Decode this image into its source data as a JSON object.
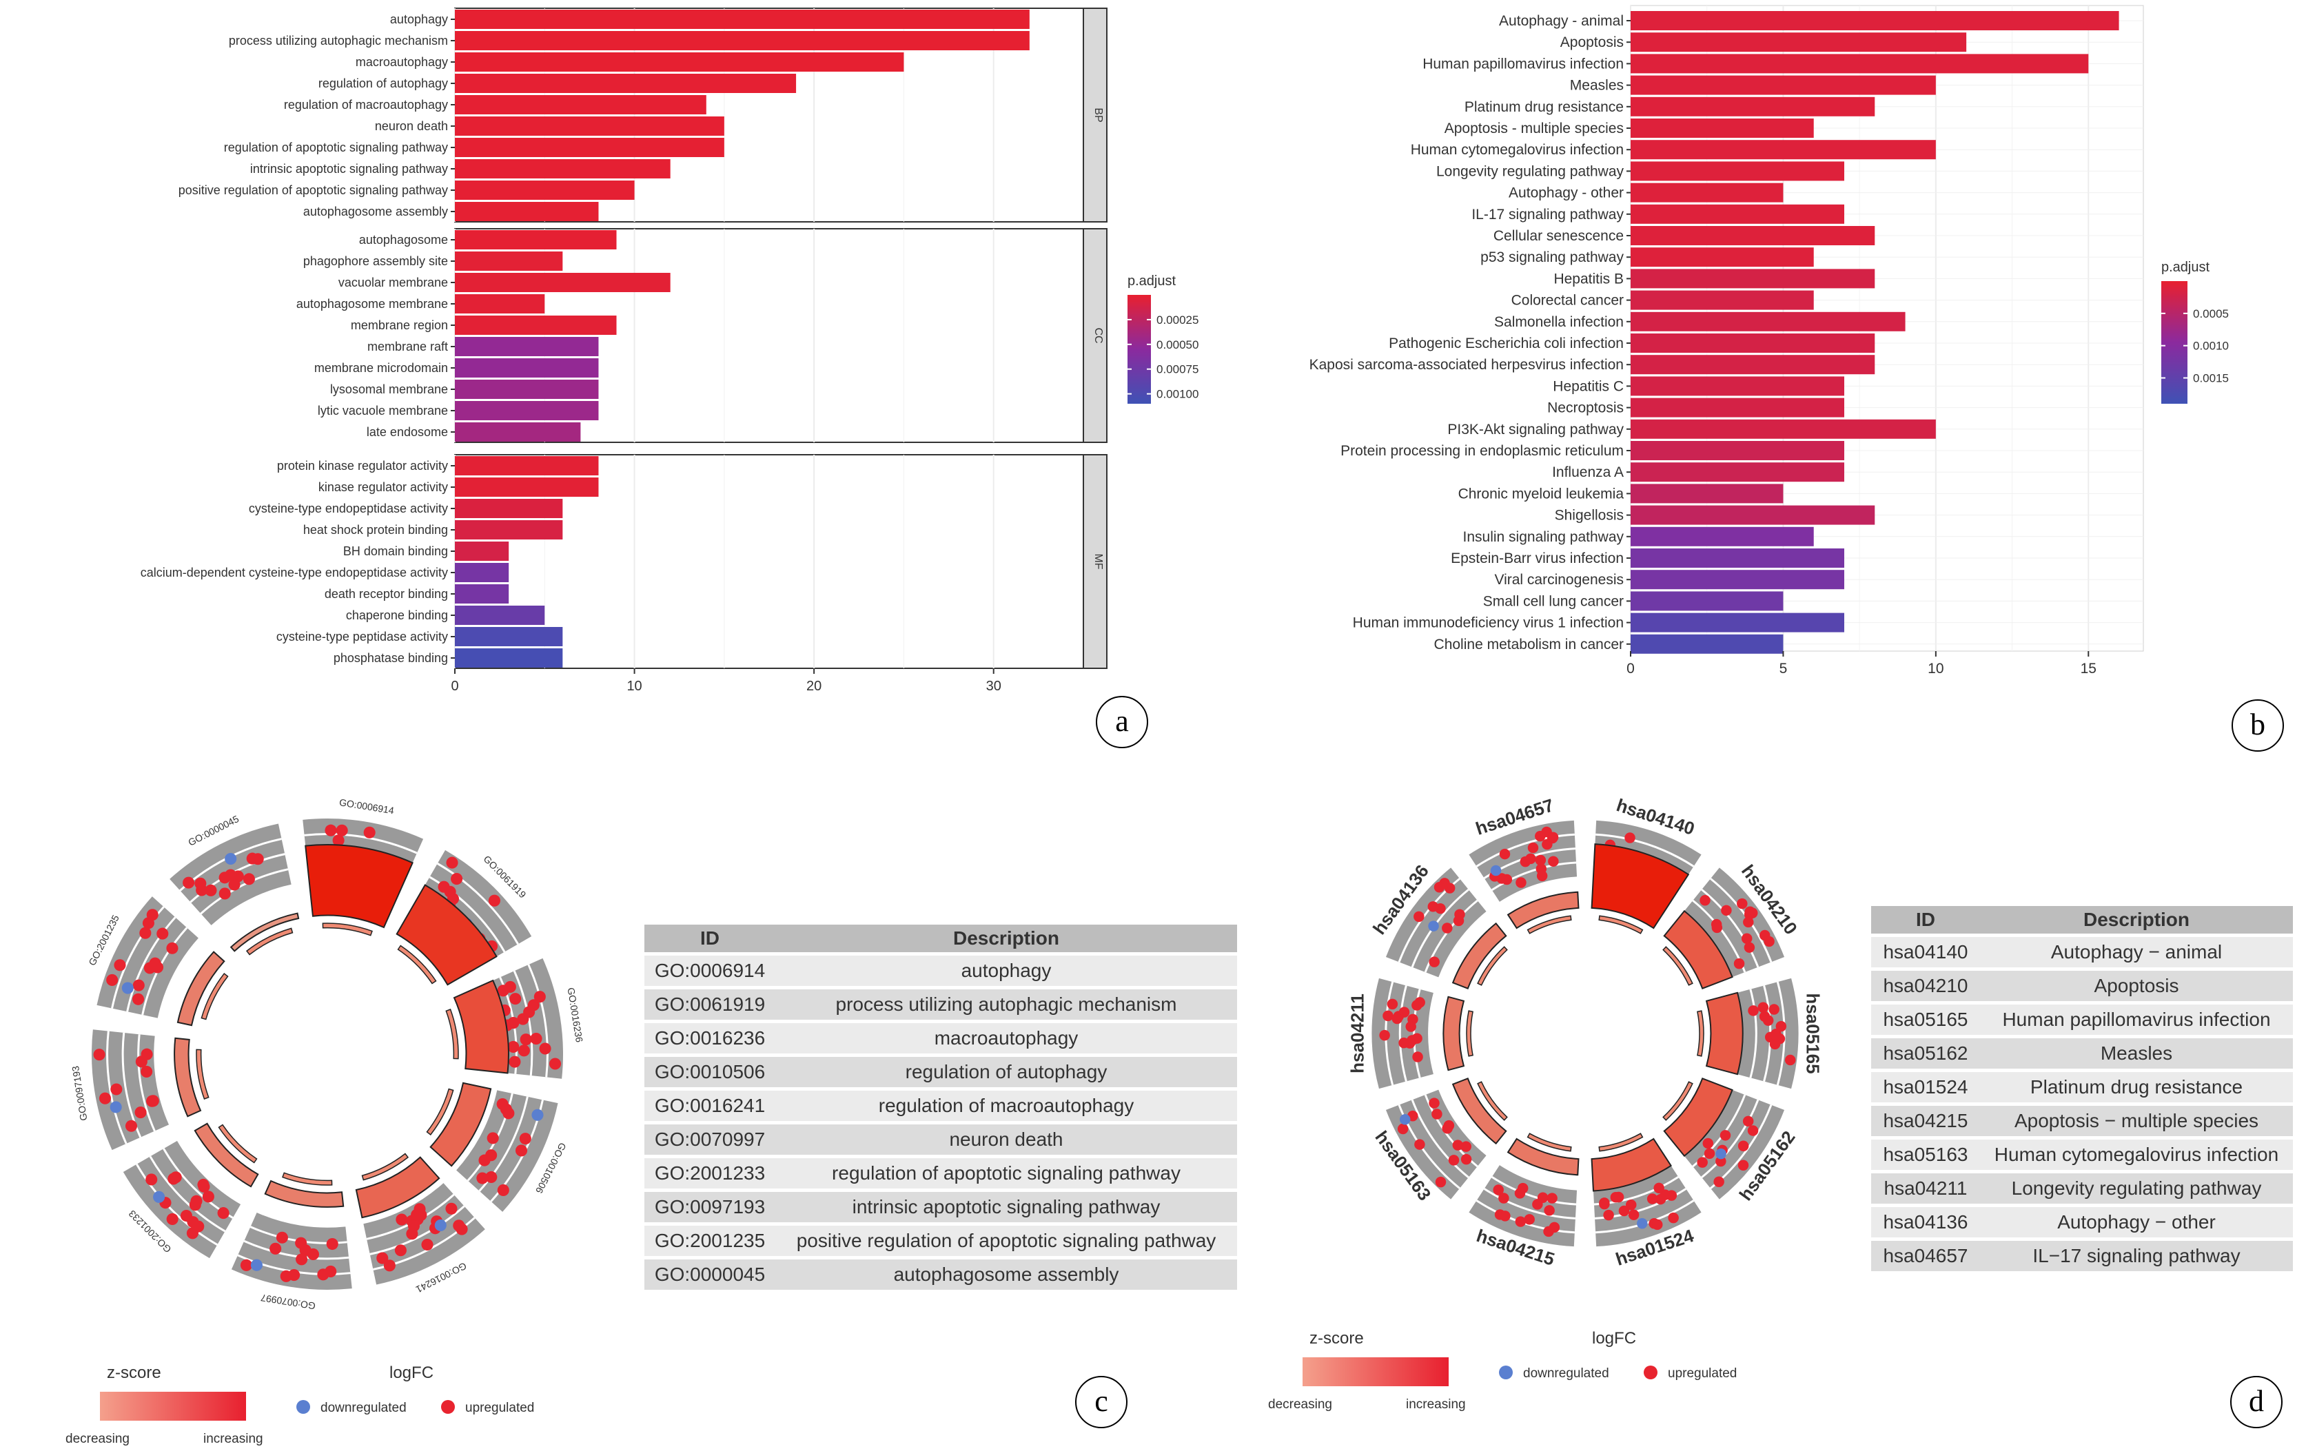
{
  "chart_data": [
    {
      "panel": "a",
      "type": "bar",
      "orientation": "horizontal",
      "facets": [
        {
          "name": "BP",
          "categories": [
            "autophagy",
            "process utilizing autophagic mechanism",
            "macroautophagy",
            "regulation of autophagy",
            "regulation of macroautophagy",
            "neuron death",
            "regulation of apoptotic signaling pathway",
            "intrinsic apoptotic signaling pathway",
            "positive regulation of apoptotic signaling pathway",
            "autophagosome assembly"
          ],
          "values": [
            32,
            32,
            25,
            19,
            14,
            15,
            15,
            12,
            10,
            8
          ],
          "p_adjust": [
            1e-05,
            1e-05,
            1e-05,
            2e-05,
            2e-05,
            2e-05,
            2e-05,
            2e-05,
            2e-05,
            2e-05
          ]
        },
        {
          "name": "CC",
          "categories": [
            "autophagosome",
            "phagophore assembly site",
            "vacuolar membrane",
            "autophagosome membrane",
            "membrane region",
            "membrane raft",
            "membrane microdomain",
            "lysosomal membrane",
            "lytic vacuole membrane",
            "late endosome"
          ],
          "values": [
            9,
            6,
            12,
            5,
            9,
            8,
            8,
            8,
            8,
            7
          ],
          "p_adjust": [
            2e-05,
            3e-05,
            3e-05,
            3e-05,
            3e-05,
            0.0005,
            0.0005,
            0.00045,
            0.00045,
            0.0004
          ]
        },
        {
          "name": "MF",
          "categories": [
            "protein kinase regulator activity",
            "kinase regulator activity",
            "cysteine-type endopeptidase activity",
            "heat shock protein binding",
            "BH domain binding",
            "calcium-dependent cysteine-type endopeptidase activity",
            "death receptor binding",
            "chaperone binding",
            "cysteine-type peptidase activity",
            "phosphatase binding"
          ],
          "values": [
            8,
            8,
            6,
            6,
            3,
            3,
            3,
            5,
            6,
            6
          ],
          "p_adjust": [
            3e-05,
            3e-05,
            8e-05,
            0.0001,
            0.00012,
            0.0007,
            0.0007,
            0.0008,
            0.001,
            0.00105
          ]
        }
      ],
      "xlim": [
        0,
        35
      ],
      "xticks": [
        0,
        10,
        20,
        30
      ],
      "legend": {
        "title": "p.adjust",
        "ticks": [
          "0.00025",
          "0.00050",
          "0.00075",
          "0.00100"
        ],
        "range": [
          0,
          0.0011
        ],
        "placement": "right"
      }
    },
    {
      "panel": "b",
      "type": "bar",
      "orientation": "horizontal",
      "categories": [
        "Autophagy - animal",
        "Apoptosis",
        "Human papillomavirus infection",
        "Measles",
        "Platinum drug resistance",
        "Apoptosis - multiple species",
        "Human cytomegalovirus infection",
        "Longevity regulating pathway",
        "Autophagy - other",
        "IL-17 signaling pathway",
        "Cellular senescence",
        "p53 signaling pathway",
        "Hepatitis B",
        "Colorectal cancer",
        "Salmonella infection",
        "Pathogenic Escherichia coli infection",
        "Kaposi sarcoma-associated herpesvirus infection",
        "Hepatitis C",
        "Necroptosis",
        "PI3K-Akt signaling pathway",
        "Protein processing in endoplasmic reticulum",
        "Influenza A",
        "Chronic myeloid leukemia",
        "Shigellosis",
        "Insulin signaling pathway",
        "Epstein-Barr virus infection",
        "Viral carcinogenesis",
        "Small cell lung cancer",
        "Human immunodeficiency virus 1 infection",
        "Choline metabolism in cancer"
      ],
      "values": [
        16,
        11,
        15,
        10,
        8,
        6,
        10,
        7,
        5,
        7,
        8,
        6,
        8,
        6,
        9,
        8,
        8,
        7,
        7,
        10,
        7,
        7,
        5,
        8,
        6,
        7,
        7,
        5,
        7,
        5
      ],
      "p_adjust": [
        0.0001,
        0.0001,
        0.0001,
        0.0001,
        0.0001,
        0.0001,
        0.0001,
        0.0001,
        0.0001,
        0.0001,
        0.0001,
        0.0001,
        0.0002,
        0.0002,
        0.0002,
        0.0002,
        0.0002,
        0.0002,
        0.0002,
        0.0002,
        0.0003,
        0.0003,
        0.0004,
        0.0004,
        0.0011,
        0.0012,
        0.0012,
        0.0013,
        0.0016,
        0.0017
      ],
      "xlim": [
        0,
        16.8
      ],
      "xticks": [
        0,
        5,
        10,
        15
      ],
      "legend": {
        "title": "p.adjust",
        "ticks": [
          "0.0005",
          "0.0010",
          "0.0015"
        ],
        "range": [
          0,
          0.0019
        ],
        "placement": "right"
      }
    },
    {
      "panel": "c",
      "type": "circular",
      "sectors": [
        "GO:0006914",
        "GO:0061919",
        "GO:0016236",
        "GO:0010506",
        "GO:0016241",
        "GO:0070997",
        "GO:2001233",
        "GO:0097193",
        "GO:2001235",
        "GO:0000045"
      ],
      "zscore_bars": [
        5,
        4,
        3,
        2,
        2,
        1,
        1,
        1,
        1,
        0
      ],
      "table": {
        "headers": [
          "ID",
          "Description"
        ],
        "rows": [
          [
            "GO:0006914",
            "autophagy"
          ],
          [
            "GO:0061919",
            "process utilizing autophagic mechanism"
          ],
          [
            "GO:0016236",
            "macroautophagy"
          ],
          [
            "GO:0010506",
            "regulation of autophagy"
          ],
          [
            "GO:0016241",
            "regulation of macroautophagy"
          ],
          [
            "GO:0070997",
            "neuron death"
          ],
          [
            "GO:2001233",
            "regulation of apoptotic signaling pathway"
          ],
          [
            "GO:0097193",
            "intrinsic apoptotic signaling pathway"
          ],
          [
            "GO:2001235",
            "positive regulation of apoptotic signaling pathway"
          ],
          [
            "GO:0000045",
            "autophagosome assembly"
          ]
        ]
      },
      "legend": {
        "zscore_title": "z-score",
        "zscore_low": "decreasing",
        "zscore_high": "increasing",
        "logfc_title": "logFC",
        "down": "downregulated",
        "up": "upregulated"
      }
    },
    {
      "panel": "d",
      "type": "circular",
      "sectors": [
        "hsa04140",
        "hsa04210",
        "hsa05165",
        "hsa05162",
        "hsa01524",
        "hsa04215",
        "hsa05163",
        "hsa04211",
        "hsa04136",
        "hsa04657"
      ],
      "zscore_bars": [
        4,
        2,
        2,
        2,
        2,
        1,
        1,
        1,
        1,
        1
      ],
      "table": {
        "headers": [
          "ID",
          "Description"
        ],
        "rows": [
          [
            "hsa04140",
            "Autophagy − animal"
          ],
          [
            "hsa04210",
            "Apoptosis"
          ],
          [
            "hsa05165",
            "Human papillomavirus infection"
          ],
          [
            "hsa05162",
            "Measles"
          ],
          [
            "hsa01524",
            "Platinum drug resistance"
          ],
          [
            "hsa04215",
            "Apoptosis − multiple species"
          ],
          [
            "hsa05163",
            "Human cytomegalovirus infection"
          ],
          [
            "hsa04211",
            "Longevity regulating pathway"
          ],
          [
            "hsa04136",
            "Autophagy − other"
          ],
          [
            "hsa04657",
            "IL−17 signaling pathway"
          ]
        ]
      },
      "legend": {
        "zscore_title": "z-score",
        "zscore_low": "decreasing",
        "zscore_high": "increasing",
        "logfc_title": "logFC",
        "down": "downregulated",
        "up": "upregulated"
      }
    }
  ],
  "panel_labels": [
    "a",
    "b",
    "c",
    "d"
  ],
  "colors": {
    "high": "#e8202f",
    "mid": "#8b2a9e",
    "low": "#3f52b5",
    "up": "#e8242f",
    "down": "#5a7fd0",
    "strip": "#d9d9d9",
    "grid": "#ececec",
    "ring": "#9a9a9a"
  }
}
